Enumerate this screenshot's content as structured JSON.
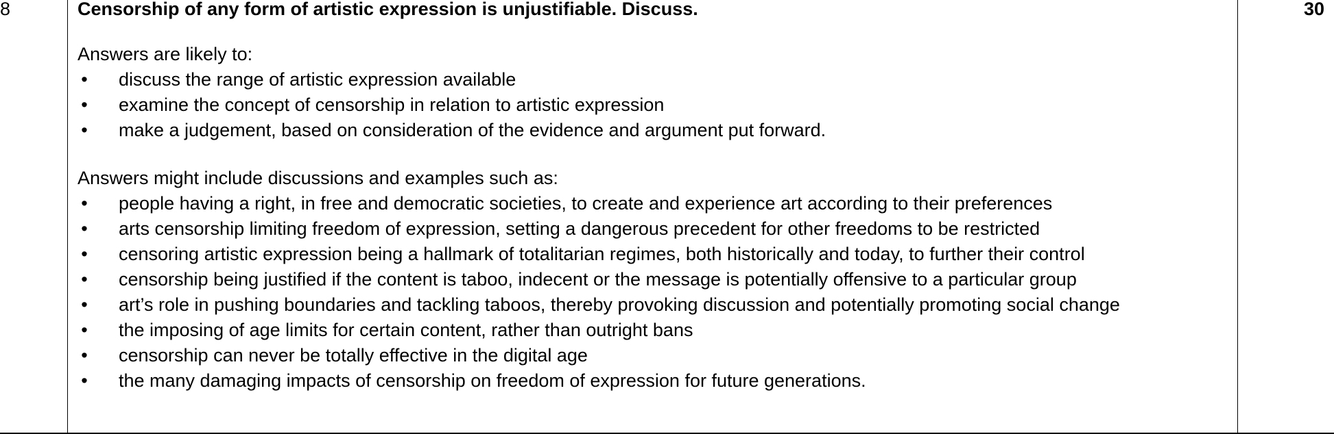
{
  "question_number": "8",
  "marks": "30",
  "question_text": "Censorship of any form of artistic expression is unjustifiable. Discuss.",
  "section1": {
    "intro": "Answers are likely to:",
    "bullets": [
      "discuss the range of artistic expression available",
      "examine the concept of censorship in relation to artistic expression",
      "make a judgement, based on consideration of the evidence and argument put forward."
    ]
  },
  "section2": {
    "intro": "Answers might include discussions and examples such as:",
    "bullets": [
      "people having a right, in free and democratic societies, to create and experience art according to their preferences",
      "arts censorship limiting freedom of expression, setting a dangerous precedent for other freedoms to be restricted",
      "censoring artistic expression being a hallmark of totalitarian regimes, both historically and today, to further their control",
      "censorship being justified if the content is taboo, indecent or the message is potentially offensive to a particular group",
      "art’s role in pushing boundaries and tackling taboos, thereby provoking discussion and potentially promoting social change",
      "the imposing of age limits for certain content, rather than outright bans",
      "censorship can never be totally effective in the digital age",
      "the many damaging impacts of censorship on freedom of expression for future generations."
    ]
  },
  "bullet_symbol": "•"
}
